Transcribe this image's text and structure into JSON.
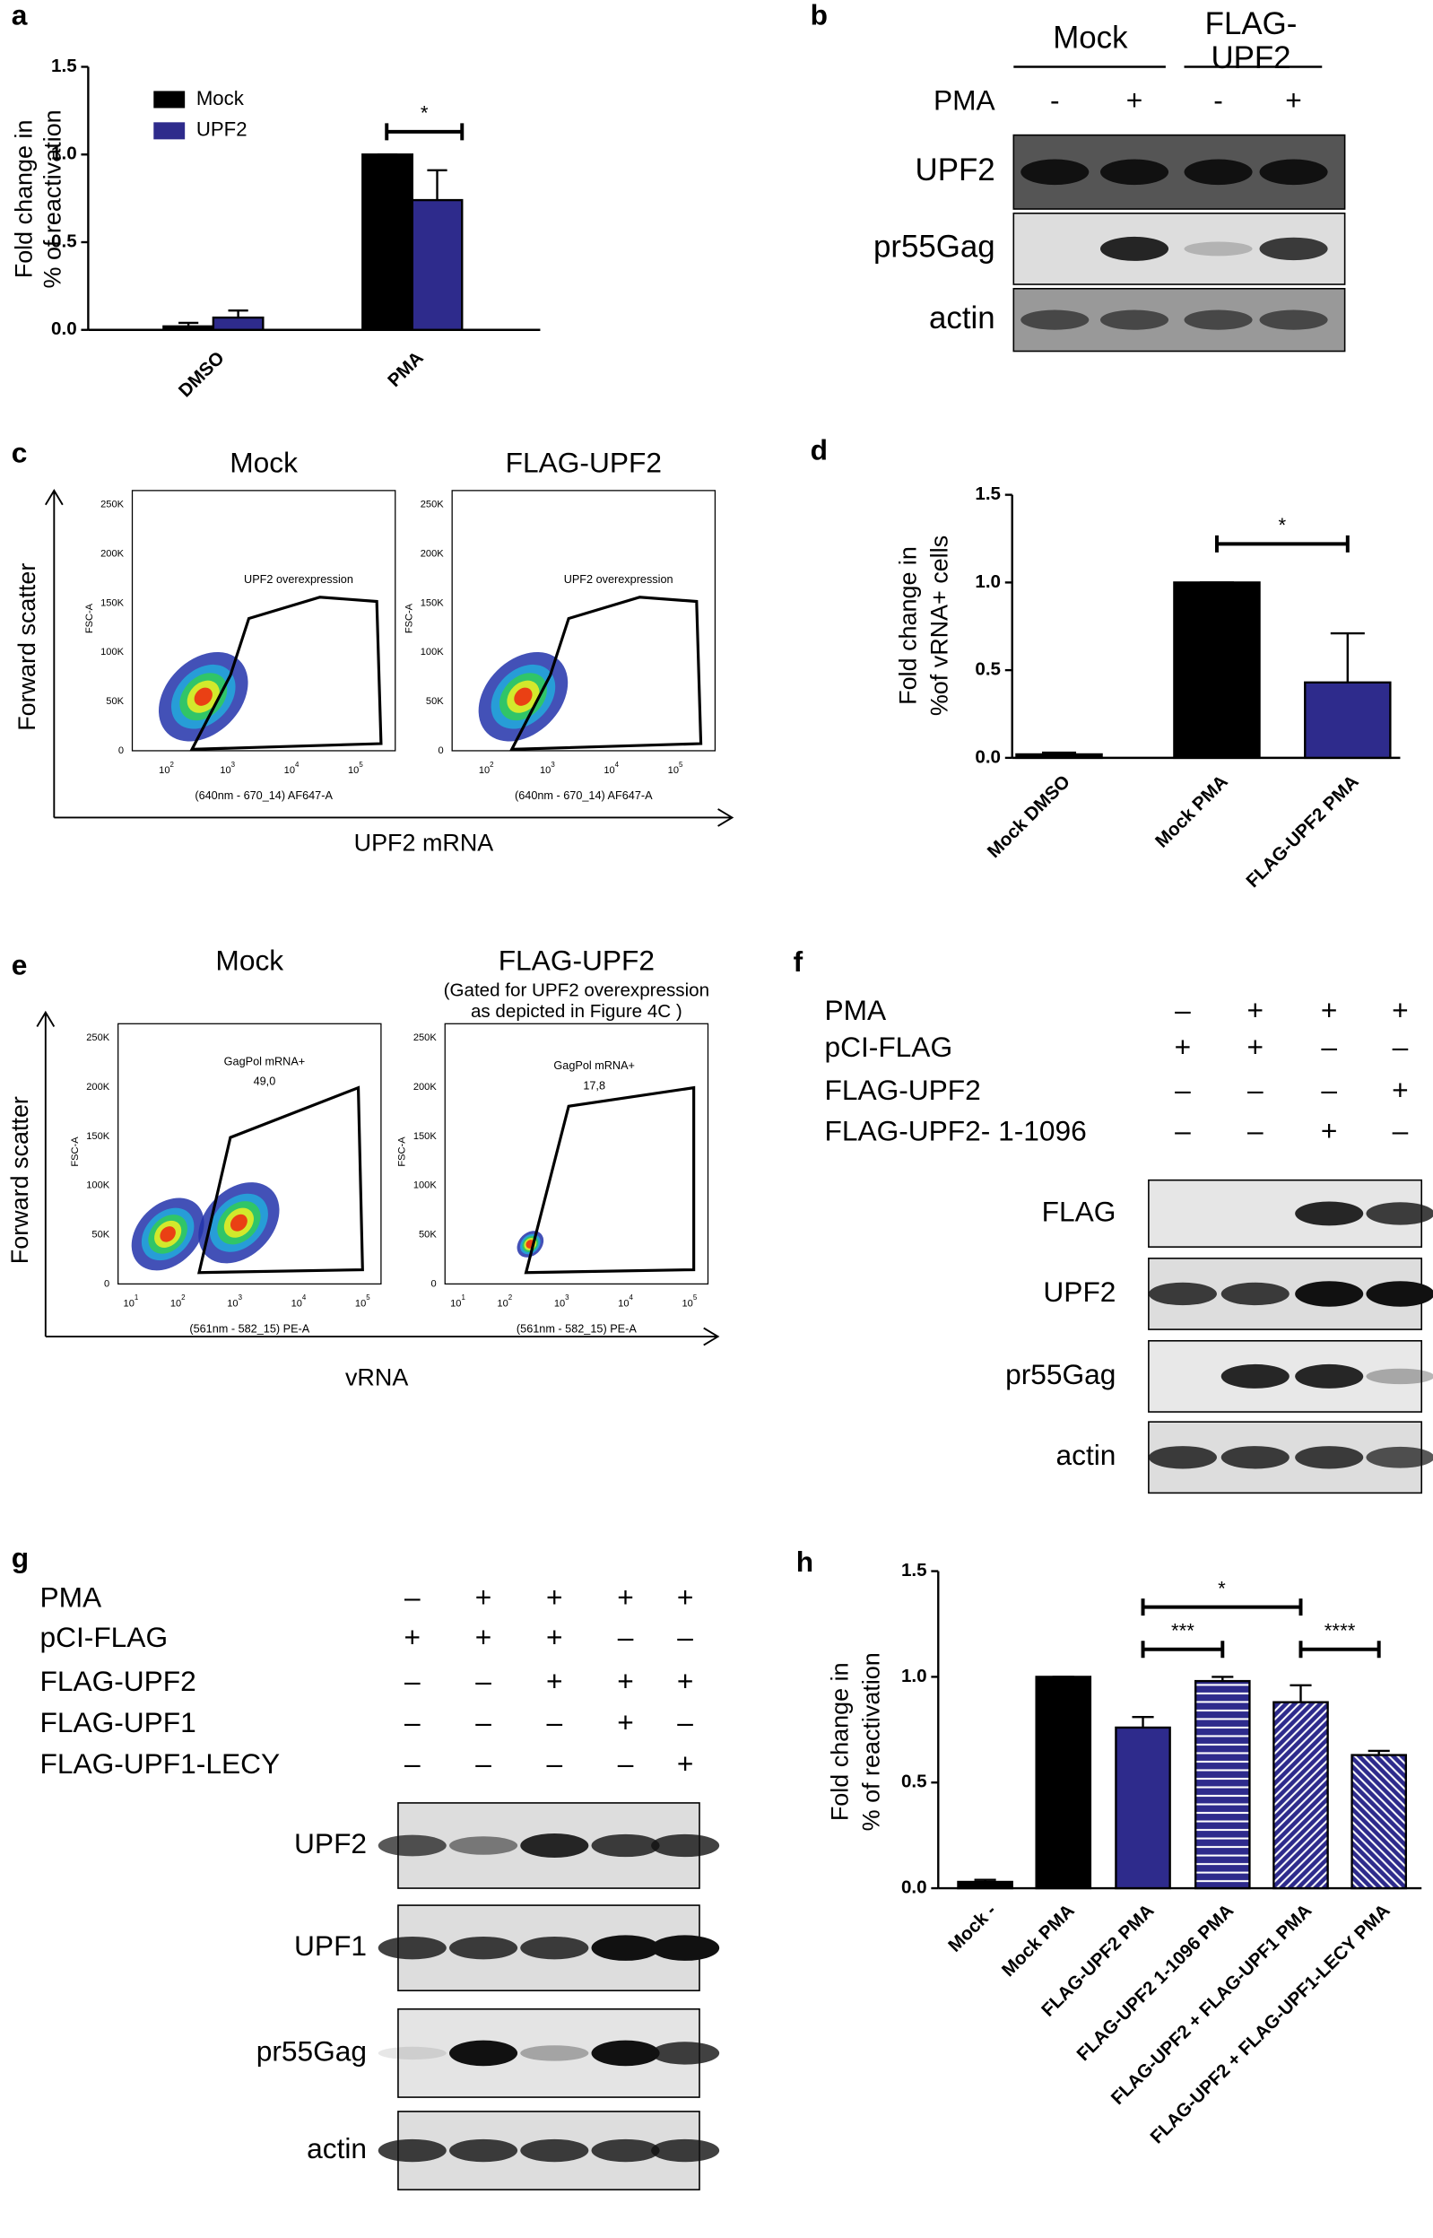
{
  "chart_data": [
    {
      "type": "bar",
      "panel": "a",
      "ylabel": [
        "Fold change in",
        "% of reactivation"
      ],
      "categories": [
        "DMSO",
        "PMA"
      ],
      "series": [
        {
          "name": "Mock",
          "color": "#000000",
          "values": [
            0.02,
            1.0
          ],
          "errors": [
            0.02,
            0
          ]
        },
        {
          "name": "UPF2",
          "color": "#2e2b8c",
          "values": [
            0.07,
            0.74
          ],
          "errors": [
            0.04,
            0.17
          ]
        }
      ],
      "ylim": [
        0,
        1.5
      ],
      "yticks": [
        {
          "value": 0,
          "label": "0.0"
        },
        0.5,
        {
          "value": 1,
          "label": "1.0"
        },
        1.5
      ],
      "annotations": [
        "*"
      ]
    },
    {
      "type": "bar",
      "panel": "d",
      "ylabel": [
        "Fold change in",
        "%of vRNA+ cells"
      ],
      "categories": [
        "Mock DMSO",
        "Mock PMA",
        "FLAG-UPF2 PMA"
      ],
      "values": [
        0.02,
        1.0,
        0.43
      ],
      "errors": [
        0.01,
        0,
        0.28
      ],
      "colors": [
        "#000000",
        "#000000",
        "#2e2b8c"
      ],
      "ylim": [
        0,
        1.5
      ],
      "yticks": [
        {
          "value": 0,
          "label": "0.0"
        },
        0.5,
        {
          "value": 1,
          "label": "1.0"
        },
        1.5
      ],
      "annotations": [
        "*"
      ]
    },
    {
      "type": "bar",
      "panel": "h",
      "ylabel": [
        "Fold change in",
        "% of reactivation"
      ],
      "categories": [
        "Mock -",
        "Mock PMA",
        "FLAG-UPF2 PMA",
        "FLAG-UPF2 1-1096 PMA",
        "FLAG-UPF2 + FLAG-UPF1 PMA",
        "FLAG-UPF2 + FLAG-UPF1-LECY PMA"
      ],
      "values": [
        0.03,
        1.0,
        0.76,
        0.98,
        0.88,
        0.63
      ],
      "errors": [
        0.01,
        0,
        0.05,
        0.02,
        0.08,
        0.02
      ],
      "colors": [
        "#000000",
        "#000000",
        "#2e2b8c",
        "#2e2b8c",
        "#2e2b8c",
        "#2e2b8c"
      ],
      "patterns": [
        "solid",
        "solid",
        "solid",
        "horizontal",
        "diagonal",
        "diagonal-reverse"
      ],
      "ylim": [
        0,
        1.5
      ],
      "yticks": [
        {
          "value": 0,
          "label": "0.0"
        },
        0.5,
        {
          "value": 1,
          "label": "1.0"
        },
        1.5
      ],
      "annotations": [
        "*",
        "***",
        "****"
      ]
    }
  ],
  "blots": [
    {
      "panel": "b",
      "groups": [
        {
          "lines": [
            "Mock"
          ]
        },
        {
          "lines": [
            "FLAG-",
            "UPF2"
          ]
        }
      ],
      "conditions": [
        {
          "name": "PMA",
          "signs": [
            "-",
            "+",
            "-",
            "+"
          ]
        }
      ],
      "bands": [
        "UPF2",
        "pr55Gag",
        "actin"
      ]
    },
    {
      "panel": "f",
      "conditions": [
        {
          "name": "PMA",
          "signs": [
            "–",
            "+",
            "+",
            "+"
          ]
        },
        {
          "name": "pCI-FLAG",
          "signs": [
            "+",
            "+",
            "–",
            "–"
          ]
        },
        {
          "name": "FLAG-UPF2",
          "signs": [
            "–",
            "–",
            "–",
            "+"
          ]
        },
        {
          "name": "FLAG-UPF2- 1-1096",
          "signs": [
            "–",
            "–",
            "+",
            "–"
          ]
        }
      ],
      "bands": [
        "FLAG",
        "UPF2",
        "pr55Gag",
        "actin"
      ]
    },
    {
      "panel": "g",
      "conditions": [
        {
          "name": "PMA",
          "signs": [
            "–",
            "+",
            "+",
            "+",
            "+"
          ]
        },
        {
          "name": "pCI-FLAG",
          "signs": [
            "+",
            "+",
            "+",
            "–",
            "–"
          ]
        },
        {
          "name": "FLAG-UPF2",
          "signs": [
            "–",
            "–",
            "+",
            "+",
            "+"
          ]
        },
        {
          "name": "FLAG-UPF1",
          "signs": [
            "–",
            "–",
            "–",
            "+",
            "–"
          ]
        },
        {
          "name": "FLAG-UPF1-LECY",
          "signs": [
            "–",
            "–",
            "–",
            "–",
            "+"
          ]
        }
      ],
      "bands": [
        "UPF2",
        "UPF1",
        "pr55Gag",
        "actin"
      ]
    }
  ],
  "flow": [
    {
      "panel": "c",
      "y_axis": "Forward scatter",
      "x_axis": "UPF2 mRNA",
      "plots": [
        {
          "title": "Mock",
          "gate": "UPF2 overexpression"
        },
        {
          "title": "FLAG-UPF2",
          "gate": "UPF2 overexpression"
        }
      ],
      "ylabel": "FSC-A",
      "yticks": [
        "250K",
        "200K",
        "150K",
        "100K",
        "50K",
        "0"
      ],
      "xtick_base": "10",
      "xtick_exps": [
        "2",
        "3",
        "4",
        "5"
      ],
      "xlabel": "(640nm - 670_14) AF647-A"
    },
    {
      "panel": "e",
      "y_axis": "Forward scatter",
      "x_axis": "vRNA",
      "plots": [
        {
          "title": "Mock",
          "gate": "GagPol mRNA+",
          "gate_value": "49,0"
        },
        {
          "title": "FLAG-UPF2",
          "note": [
            "(Gated for UPF2 overexpression",
            "as depicted in Figure 4C )"
          ],
          "gate": "GagPol mRNA+",
          "gate_value": "17,8"
        }
      ],
      "ylabel": "FSC-A",
      "yticks": [
        "250K",
        "200K",
        "150K",
        "100K",
        "50K",
        "0"
      ],
      "xtick_base": "10",
      "xtick_exps": [
        "1",
        "2",
        "3",
        "4",
        "5"
      ],
      "xlabel": "(561nm - 582_15) PE-A"
    }
  ]
}
